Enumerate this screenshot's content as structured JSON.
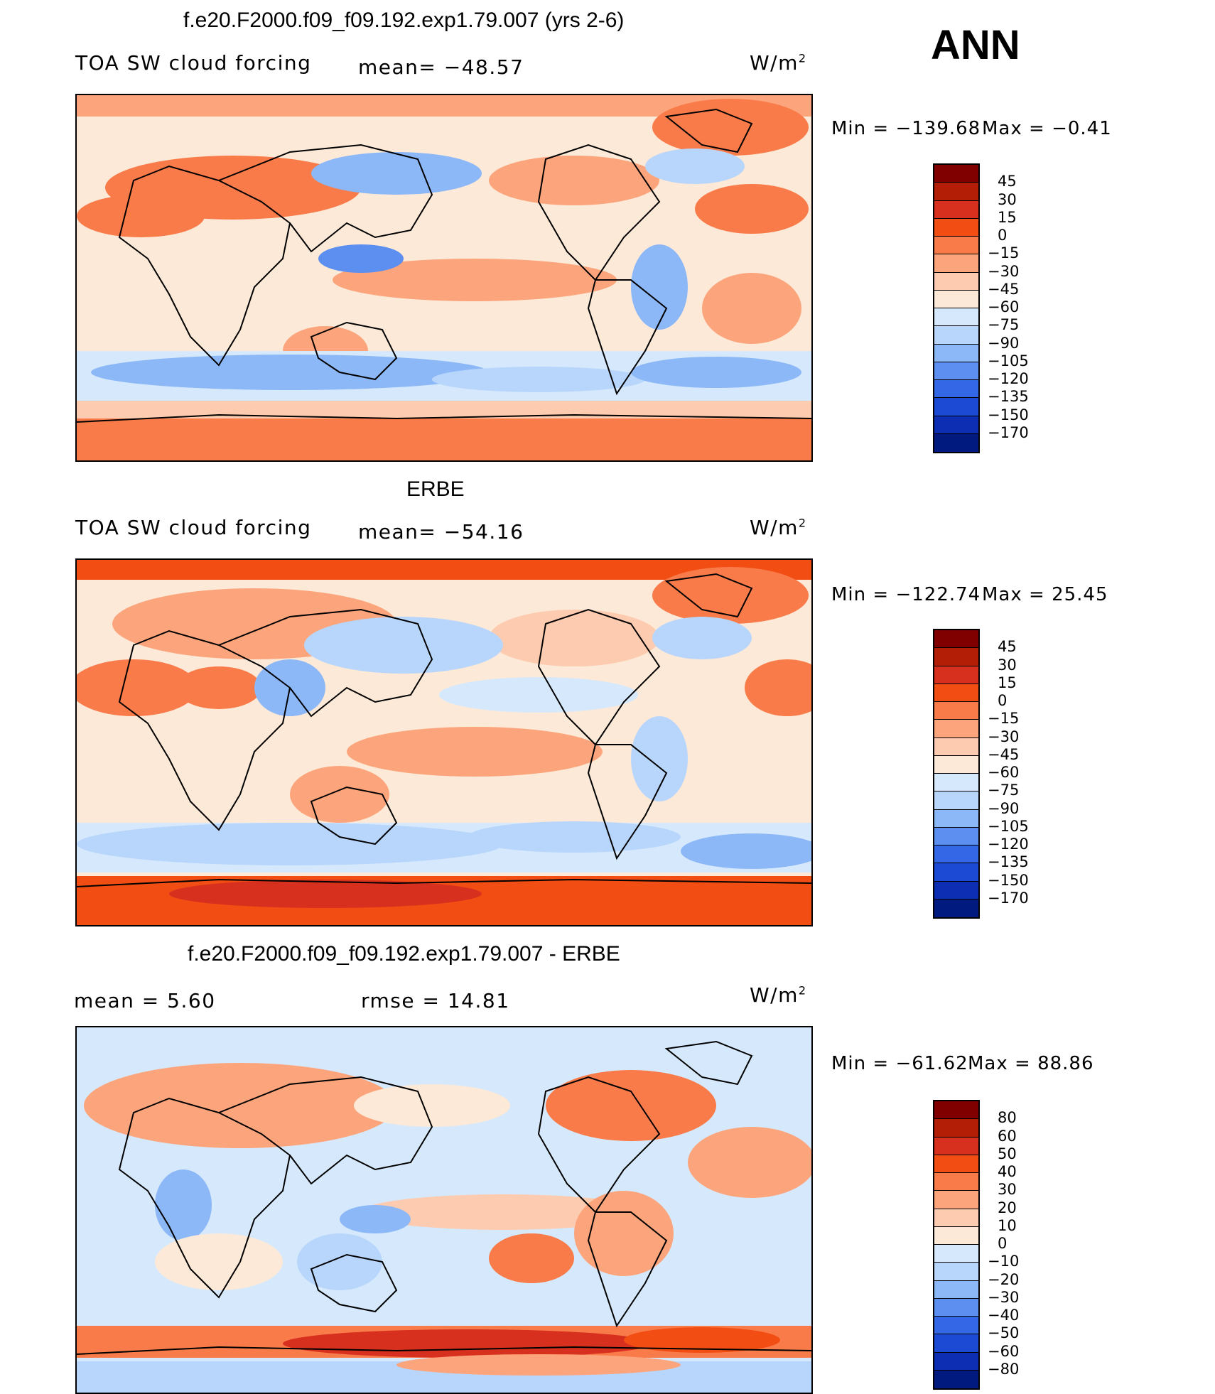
{
  "season": "ANN",
  "chart_data": [
    {
      "type": "heatmap",
      "title": "f.e20.F2000.f09_f09.192.exp1.79.007 (yrs 2-6)",
      "variable": "TOA SW cloud forcing",
      "stat_left": "mean=  −48.57",
      "units": "W/m",
      "units_exp": "2",
      "min_label": "Min  =  −139.68",
      "max_label": "Max  =    −0.41",
      "min": -139.68,
      "max": -0.41,
      "mean": -48.57,
      "levels": [
        "45",
        "30",
        "15",
        "0",
        "−15",
        "−30",
        "−45",
        "−60",
        "−75",
        "−90",
        "−105",
        "−120",
        "−135",
        "−150",
        "−170"
      ],
      "colors": [
        "#800000",
        "#b31e06",
        "#d7301f",
        "#f24d13",
        "#fa7b4a",
        "#fca57c",
        "#fdccb0",
        "#fde9d7",
        "#d6e9fc",
        "#b8d6fb",
        "#8db8f7",
        "#5d8ff0",
        "#3367e6",
        "#1d4ad4",
        "#0d2db3",
        "#001a80"
      ]
    },
    {
      "type": "heatmap",
      "title": "ERBE",
      "variable": "TOA SW cloud forcing",
      "stat_left": "mean=  −54.16",
      "units": "W/m",
      "units_exp": "2",
      "min_label": "Min  =  −122.74",
      "max_label": "Max  =    25.45",
      "min": -122.74,
      "max": 25.45,
      "mean": -54.16,
      "levels": [
        "45",
        "30",
        "15",
        "0",
        "−15",
        "−30",
        "−45",
        "−60",
        "−75",
        "−90",
        "−105",
        "−120",
        "−135",
        "−150",
        "−170"
      ],
      "colors": [
        "#800000",
        "#b31e06",
        "#d7301f",
        "#f24d13",
        "#fa7b4a",
        "#fca57c",
        "#fdccb0",
        "#fde9d7",
        "#d6e9fc",
        "#b8d6fb",
        "#8db8f7",
        "#5d8ff0",
        "#3367e6",
        "#1d4ad4",
        "#0d2db3",
        "#001a80"
      ]
    },
    {
      "type": "heatmap",
      "title": "f.e20.F2000.f09_f09.192.exp1.79.007 - ERBE",
      "stat_left": "mean  =     5.60",
      "stat_mid": "rmse  =    14.81",
      "units": "W/m",
      "units_exp": "2",
      "min_label": "Min  =  −61.62",
      "max_label": "Max  =    88.86",
      "min": -61.62,
      "max": 88.86,
      "mean": 5.6,
      "rmse": 14.81,
      "levels": [
        "80",
        "60",
        "50",
        "40",
        "30",
        "20",
        "10",
        "0",
        "−10",
        "−20",
        "−30",
        "−40",
        "−50",
        "−60",
        "−80"
      ],
      "colors": [
        "#800000",
        "#b31e06",
        "#d7301f",
        "#f24d13",
        "#fa7b4a",
        "#fca57c",
        "#fdccb0",
        "#fde9d7",
        "#d6e9fc",
        "#b8d6fb",
        "#8db8f7",
        "#5d8ff0",
        "#3367e6",
        "#1d4ad4",
        "#0d2db3",
        "#001a80"
      ]
    }
  ]
}
